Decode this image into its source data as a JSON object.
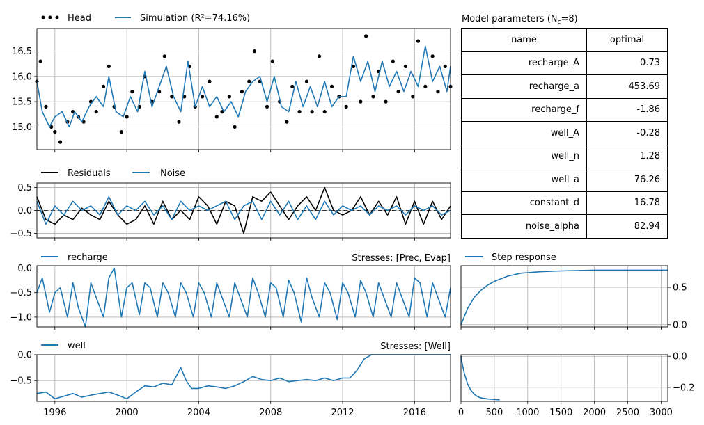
{
  "panels": {
    "head": {
      "legend": [
        "Head",
        "Simulation (R²=74.16%)"
      ],
      "yticks": [
        "15.0",
        "15.5",
        "16.0",
        "16.5"
      ],
      "ylim": [
        14.55,
        16.95
      ]
    },
    "residuals": {
      "legend": [
        "Residuals",
        "Noise"
      ],
      "yticks": [
        "−0.5",
        "0.0",
        "0.5"
      ],
      "ylim": [
        -0.6,
        0.6
      ]
    },
    "recharge": {
      "legend": [
        "recharge"
      ],
      "stress_label": "Stresses: [Prec, Evap]",
      "yticks": [
        "−1.0",
        "−0.5",
        "0.0"
      ],
      "ylim": [
        -1.2,
        0.05
      ]
    },
    "well": {
      "legend": [
        "well"
      ],
      "stress_label": "Stresses: [Well]",
      "yticks": [
        "−0.5",
        "0.0"
      ],
      "ylim": [
        -0.9,
        0.0
      ],
      "xticks": [
        "1996",
        "2000",
        "2004",
        "2008",
        "2012",
        "2016"
      ]
    },
    "step_recharge": {
      "legend": [
        "Step response"
      ],
      "yticks": [
        "0.0",
        "0.5"
      ],
      "ylim": [
        -0.03,
        0.79
      ]
    },
    "step_well": {
      "yticks": [
        "−0.2",
        "0.0"
      ],
      "ylim": [
        -0.29,
        0.01
      ],
      "xticks": [
        "0",
        "500",
        "1000",
        "1500",
        "2000",
        "2500",
        "3000"
      ]
    }
  },
  "table": {
    "title": "Model parameters (N",
    "title_sub": "c",
    "title_end": "=8)",
    "headers": [
      "name",
      "optimal"
    ],
    "rows": [
      [
        "recharge_A",
        "0.73"
      ],
      [
        "recharge_a",
        "453.69"
      ],
      [
        "recharge_f",
        "-1.86"
      ],
      [
        "well_A",
        "-0.28"
      ],
      [
        "well_n",
        "1.28"
      ],
      [
        "well_a",
        "76.26"
      ],
      [
        "constant_d",
        "16.78"
      ],
      [
        "noise_alpha",
        "82.94"
      ]
    ]
  },
  "colors": {
    "blue": "#1f77b4",
    "black": "#000000",
    "grid": "#b0b0b0"
  },
  "chart_data": [
    {
      "type": "scatter",
      "title": "",
      "xlabel": "",
      "ylabel": "",
      "xlim": [
        1995.0,
        2018.0
      ],
      "ylim": [
        14.55,
        16.95
      ],
      "series": [
        {
          "name": "Head",
          "x": [
            1995.0,
            1995.2,
            1995.5,
            1995.8,
            1996.0,
            1996.3,
            1996.7,
            1997.0,
            1997.3,
            1997.6,
            1998.0,
            1998.3,
            1998.7,
            1999.0,
            1999.3,
            1999.7,
            2000.0,
            2000.3,
            2000.7,
            2001.0,
            2001.4,
            2001.8,
            2002.1,
            2002.5,
            2002.9,
            2003.2,
            2003.5,
            2003.8,
            2004.2,
            2004.6,
            2005.0,
            2005.3,
            2005.7,
            2006.0,
            2006.4,
            2006.8,
            2007.1,
            2007.4,
            2007.8,
            2008.1,
            2008.5,
            2008.9,
            2009.2,
            2009.6,
            2010.0,
            2010.3,
            2010.7,
            2011.0,
            2011.4,
            2011.8,
            2012.2,
            2012.6,
            2013.0,
            2013.3,
            2013.7,
            2014.0,
            2014.4,
            2014.8,
            2015.1,
            2015.5,
            2015.9,
            2016.2,
            2016.6,
            2017.0,
            2017.3,
            2017.7,
            2018.0
          ],
          "values": [
            15.9,
            16.3,
            15.4,
            15.0,
            14.9,
            14.7,
            15.1,
            15.3,
            15.2,
            15.1,
            15.5,
            15.3,
            15.8,
            16.2,
            15.4,
            14.9,
            15.2,
            15.7,
            15.4,
            16.0,
            15.5,
            15.7,
            16.4,
            15.6,
            15.1,
            15.6,
            16.2,
            15.4,
            15.6,
            15.9,
            15.2,
            15.3,
            15.6,
            15.0,
            15.7,
            15.9,
            16.5,
            15.9,
            15.4,
            16.3,
            15.5,
            15.1,
            15.8,
            15.3,
            15.9,
            15.3,
            16.4,
            15.3,
            15.8,
            15.6,
            15.4,
            16.2,
            15.5,
            16.8,
            15.6,
            16.1,
            15.5,
            16.3,
            15.7,
            16.2,
            15.6,
            16.7,
            15.8,
            16.4,
            15.7,
            16.2,
            15.8
          ]
        },
        {
          "name": "Simulation (R²=74.16%)",
          "x": [
            1995.0,
            1995.3,
            1995.7,
            1996.0,
            1996.4,
            1996.8,
            1997.1,
            1997.5,
            1997.9,
            1998.3,
            1998.7,
            1999.0,
            1999.4,
            1999.8,
            2000.2,
            2000.6,
            2001.0,
            2001.4,
            2001.8,
            2002.2,
            2002.6,
            2003.0,
            2003.4,
            2003.8,
            2004.2,
            2004.6,
            2005.0,
            2005.4,
            2005.8,
            2006.2,
            2006.6,
            2007.0,
            2007.4,
            2007.8,
            2008.2,
            2008.6,
            2009.0,
            2009.4,
            2009.8,
            2010.2,
            2010.6,
            2011.0,
            2011.4,
            2011.8,
            2012.2,
            2012.6,
            2013.0,
            2013.4,
            2013.8,
            2014.2,
            2014.6,
            2015.0,
            2015.4,
            2015.8,
            2016.2,
            2016.6,
            2017.0,
            2017.4,
            2017.8,
            2018.0
          ],
          "values": [
            15.9,
            15.3,
            15.0,
            15.2,
            15.3,
            15.0,
            15.3,
            15.1,
            15.4,
            15.6,
            15.4,
            16.0,
            15.3,
            15.2,
            15.6,
            15.3,
            16.1,
            15.4,
            15.8,
            16.2,
            15.6,
            15.3,
            16.3,
            15.4,
            15.8,
            15.4,
            15.6,
            15.3,
            15.5,
            15.2,
            15.7,
            15.9,
            16.0,
            15.5,
            16.0,
            15.4,
            15.3,
            15.9,
            15.4,
            15.8,
            15.4,
            15.9,
            15.4,
            15.6,
            15.6,
            16.4,
            15.9,
            16.3,
            15.7,
            16.3,
            15.8,
            16.1,
            15.7,
            16.1,
            15.8,
            16.6,
            15.9,
            16.2,
            15.7,
            16.2
          ]
        }
      ]
    },
    {
      "type": "line",
      "xlim": [
        1995.0,
        2018.0
      ],
      "ylim": [
        -0.6,
        0.6
      ],
      "series": [
        {
          "name": "Residuals",
          "x": [
            1995.0,
            1995.5,
            1996.0,
            1996.5,
            1997.0,
            1997.5,
            1998.0,
            1998.5,
            1999.0,
            1999.5,
            2000.0,
            2000.5,
            2001.0,
            2001.5,
            2002.0,
            2002.5,
            2003.0,
            2003.5,
            2004.0,
            2004.5,
            2005.0,
            2005.5,
            2006.0,
            2006.5,
            2007.0,
            2007.5,
            2008.0,
            2008.5,
            2009.0,
            2009.5,
            2010.0,
            2010.5,
            2011.0,
            2011.5,
            2012.0,
            2012.5,
            2013.0,
            2013.5,
            2014.0,
            2014.5,
            2015.0,
            2015.5,
            2016.0,
            2016.5,
            2017.0,
            2017.5,
            2018.0
          ],
          "values": [
            0.3,
            -0.2,
            -0.3,
            -0.1,
            -0.2,
            0.05,
            -0.1,
            -0.2,
            0.2,
            -0.1,
            -0.3,
            -0.2,
            0.1,
            -0.3,
            0.2,
            -0.2,
            0.0,
            -0.2,
            0.3,
            0.1,
            -0.3,
            0.2,
            0.1,
            -0.5,
            0.3,
            0.2,
            0.4,
            0.1,
            -0.2,
            0.1,
            0.3,
            0.0,
            0.5,
            0.0,
            -0.1,
            0.0,
            0.3,
            -0.1,
            0.2,
            -0.1,
            0.3,
            -0.3,
            0.2,
            -0.3,
            0.2,
            -0.2,
            0.1
          ]
        },
        {
          "name": "Noise",
          "x": [
            1995.0,
            1995.5,
            1996.0,
            1996.5,
            1997.0,
            1997.5,
            1998.0,
            1998.5,
            1999.0,
            1999.5,
            2000.0,
            2000.5,
            2001.0,
            2001.5,
            2002.0,
            2002.5,
            2003.0,
            2003.5,
            2004.0,
            2004.5,
            2005.0,
            2005.5,
            2006.0,
            2006.5,
            2007.0,
            2007.5,
            2008.0,
            2008.5,
            2009.0,
            2009.5,
            2010.0,
            2010.5,
            2011.0,
            2011.5,
            2012.0,
            2012.5,
            2013.0,
            2013.5,
            2014.0,
            2014.5,
            2015.0,
            2015.5,
            2016.0,
            2016.5,
            2017.0,
            2017.5,
            2018.0
          ],
          "values": [
            0.2,
            -0.3,
            0.1,
            -0.1,
            0.2,
            0.0,
            0.1,
            -0.1,
            0.3,
            -0.1,
            0.1,
            0.0,
            0.2,
            -0.1,
            0.1,
            -0.2,
            0.2,
            0.0,
            0.1,
            0.0,
            0.1,
            0.2,
            -0.2,
            0.1,
            0.2,
            -0.2,
            0.2,
            -0.1,
            0.2,
            -0.2,
            0.1,
            -0.2,
            0.2,
            -0.1,
            0.1,
            0.0,
            0.1,
            -0.1,
            0.1,
            0.0,
            0.1,
            -0.1,
            0.1,
            0.0,
            0.1,
            -0.1,
            0.0
          ]
        }
      ]
    },
    {
      "type": "line",
      "xlim": [
        1995.0,
        2018.0
      ],
      "ylim": [
        -1.2,
        0.05
      ],
      "series": [
        {
          "name": "recharge",
          "x": [
            1995.0,
            1995.3,
            1995.7,
            1996.0,
            1996.3,
            1996.7,
            1997.0,
            1997.3,
            1997.7,
            1998.0,
            1998.3,
            1998.7,
            1999.0,
            1999.3,
            1999.7,
            2000.0,
            2000.3,
            2000.7,
            2001.0,
            2001.3,
            2001.7,
            2002.0,
            2002.3,
            2002.7,
            2003.0,
            2003.3,
            2003.7,
            2004.0,
            2004.3,
            2004.7,
            2005.0,
            2005.3,
            2005.7,
            2006.0,
            2006.3,
            2006.7,
            2007.0,
            2007.3,
            2007.7,
            2008.0,
            2008.3,
            2008.7,
            2009.0,
            2009.3,
            2009.7,
            2010.0,
            2010.3,
            2010.7,
            2011.0,
            2011.3,
            2011.7,
            2012.0,
            2012.3,
            2012.7,
            2013.0,
            2013.3,
            2013.7,
            2014.0,
            2014.3,
            2014.7,
            2015.0,
            2015.3,
            2015.7,
            2016.0,
            2016.3,
            2016.7,
            2017.0,
            2017.3,
            2017.7,
            2018.0
          ],
          "values": [
            -0.5,
            -0.2,
            -0.9,
            -0.5,
            -0.4,
            -1.0,
            -0.3,
            -0.8,
            -1.2,
            -0.3,
            -0.6,
            -1.0,
            -0.2,
            0.0,
            -1.0,
            -0.4,
            -0.3,
            -0.95,
            -0.3,
            -0.4,
            -1.0,
            -0.3,
            -0.5,
            -1.0,
            -0.3,
            -0.5,
            -1.0,
            -0.3,
            -0.5,
            -1.0,
            -0.3,
            -0.6,
            -1.0,
            -0.3,
            -0.6,
            -1.0,
            -0.2,
            -0.5,
            -1.0,
            -0.3,
            -0.4,
            -1.0,
            -0.25,
            -0.5,
            -1.1,
            -0.2,
            -0.6,
            -1.0,
            -0.3,
            -0.5,
            -1.05,
            -0.3,
            -0.5,
            -1.0,
            -0.25,
            -0.5,
            -1.0,
            -0.3,
            -0.6,
            -1.0,
            -0.3,
            -0.6,
            -1.0,
            -0.2,
            -0.3,
            -1.0,
            -0.3,
            -0.6,
            -1.0,
            -0.4
          ]
        }
      ]
    },
    {
      "type": "line",
      "xlim": [
        1995.0,
        2018.0
      ],
      "ylim": [
        -0.9,
        0.0
      ],
      "series": [
        {
          "name": "well",
          "x": [
            1995.0,
            1995.5,
            1996.0,
            1996.5,
            1997.0,
            1997.5,
            1998.0,
            1998.5,
            1999.0,
            1999.5,
            2000.0,
            2000.5,
            2001.0,
            2001.5,
            2002.0,
            2002.5,
            2003.0,
            2003.3,
            2003.6,
            2004.0,
            2004.5,
            2005.0,
            2005.5,
            2006.0,
            2006.5,
            2007.0,
            2007.5,
            2008.0,
            2008.5,
            2009.0,
            2009.5,
            2010.0,
            2010.5,
            2011.0,
            2011.5,
            2012.0,
            2012.4,
            2012.8,
            2013.2,
            2013.6,
            2014.0,
            2015.0,
            2016.0,
            2017.0,
            2018.0
          ],
          "values": [
            -0.75,
            -0.72,
            -0.85,
            -0.8,
            -0.75,
            -0.82,
            -0.78,
            -0.75,
            -0.72,
            -0.78,
            -0.85,
            -0.72,
            -0.6,
            -0.62,
            -0.55,
            -0.58,
            -0.25,
            -0.5,
            -0.65,
            -0.65,
            -0.6,
            -0.62,
            -0.65,
            -0.6,
            -0.52,
            -0.42,
            -0.48,
            -0.5,
            -0.45,
            -0.52,
            -0.5,
            -0.48,
            -0.5,
            -0.45,
            -0.5,
            -0.45,
            -0.45,
            -0.3,
            -0.08,
            0.0,
            0.0,
            0.0,
            0.0,
            0.0,
            0.0
          ]
        }
      ]
    },
    {
      "type": "line",
      "title": "",
      "xlim": [
        0,
        3100
      ],
      "ylim": [
        -0.03,
        0.79
      ],
      "series": [
        {
          "name": "Step response",
          "x": [
            0,
            100,
            200,
            300,
            400,
            500,
            700,
            900,
            1200,
            1500,
            2000,
            2500,
            3000,
            3100
          ],
          "values": [
            0.0,
            0.22,
            0.37,
            0.46,
            0.53,
            0.58,
            0.65,
            0.69,
            0.71,
            0.72,
            0.73,
            0.73,
            0.73,
            0.73
          ]
        }
      ]
    },
    {
      "type": "line",
      "xlim": [
        0,
        3100
      ],
      "ylim": [
        -0.29,
        0.01
      ],
      "series": [
        {
          "x": [
            0,
            20,
            50,
            100,
            150,
            200,
            250,
            300,
            400,
            500,
            580
          ],
          "values": [
            0.0,
            -0.05,
            -0.11,
            -0.18,
            -0.22,
            -0.245,
            -0.26,
            -0.268,
            -0.275,
            -0.278,
            -0.28
          ]
        }
      ]
    }
  ]
}
